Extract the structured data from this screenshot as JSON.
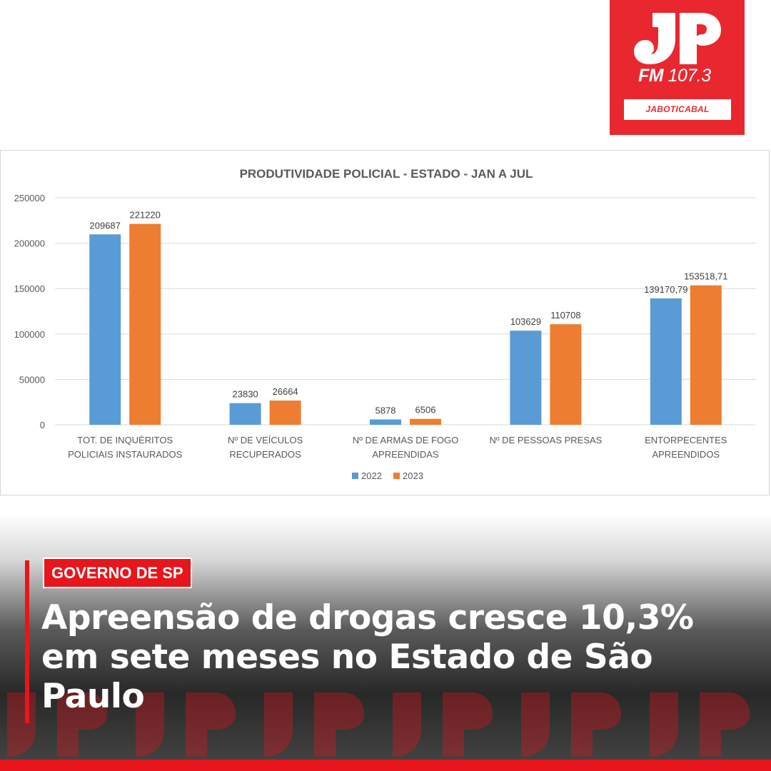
{
  "logo": {
    "station": "FM",
    "frequency": "107.3",
    "city": "JABOTICABAL",
    "brand_color": "#e8282e"
  },
  "chart_data": {
    "type": "bar",
    "title": "PRODUTIVIDADE POLICIAL - ESTADO - JAN A JUL",
    "xlabel": "",
    "ylabel": "",
    "ylim": [
      0,
      250000
    ],
    "yticks": [
      0,
      50000,
      100000,
      150000,
      200000,
      250000
    ],
    "ytick_labels": [
      "0",
      "50000",
      "100000",
      "150000",
      "200000",
      "250000"
    ],
    "grid": true,
    "legend": "bottom",
    "categories": [
      [
        "TOT. DE INQUÉRITOS",
        "POLICIAIS INSTAURADOS"
      ],
      [
        "Nº DE VEÍCULOS",
        "RECUPERADOS"
      ],
      [
        "Nº DE ARMAS DE FOGO",
        "APREENDIDAS"
      ],
      [
        "Nº DE PESSOAS PRESAS"
      ],
      [
        "ENTORPECENTES",
        "APREENDIDOS"
      ]
    ],
    "series": [
      {
        "name": "2022",
        "color": "#5b9bd5",
        "values": [
          209687,
          23830,
          5878,
          103629,
          139170.79
        ],
        "labels": [
          "209687",
          "23830",
          "5878",
          "103629",
          "139170,79"
        ]
      },
      {
        "name": "2023",
        "color": "#ed7d31",
        "values": [
          221220,
          26664,
          6506,
          110708,
          153518.71
        ],
        "labels": [
          "221220",
          "26664",
          "6506",
          "110708",
          "153518,71"
        ]
      }
    ]
  },
  "article": {
    "tag": "GOVERNO DE SP",
    "headline": "Apreensão de drogas cresce 10,3% em sete meses no Estado de São Paulo",
    "accent_color": "#e8151c"
  }
}
